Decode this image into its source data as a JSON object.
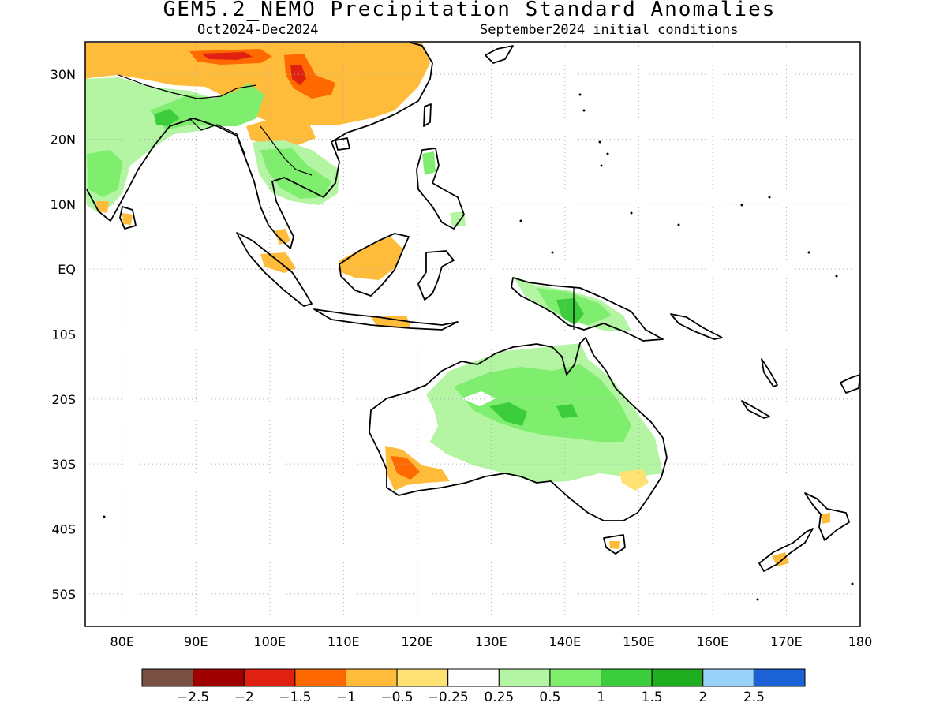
{
  "title": "GEM5.2_NEMO Precipitation Standard Anomalies",
  "subtitle_left": "Oct2024-Dec2024",
  "subtitle_right": "September2024 initial conditions",
  "axes": {
    "lon_ticks": [
      "80E",
      "90E",
      "100E",
      "110E",
      "120E",
      "130E",
      "140E",
      "150E",
      "160E",
      "170E",
      "180"
    ],
    "lat_ticks": [
      "30N",
      "20N",
      "10N",
      "EQ",
      "10S",
      "20S",
      "30S",
      "40S",
      "50S"
    ],
    "lon_range_deg": [
      75,
      180
    ],
    "lat_range_deg": [
      -55,
      35
    ],
    "grid": "dotted"
  },
  "colorbar": {
    "colors": [
      "#7a4f44",
      "#a00000",
      "#e02010",
      "#ff6a00",
      "#ffbb3a",
      "#ffe273",
      "#ffffff",
      "#b3f5a3",
      "#7fed6e",
      "#3ccd3c",
      "#1fae1f",
      "#9bd2fa",
      "#1a62d6"
    ],
    "labels": [
      "-2.5",
      "-2",
      "-1.5",
      "-1",
      "-0.5",
      "-0.25",
      "0.25",
      "0.5",
      "1",
      "1.5",
      "2",
      "2.5"
    ]
  }
}
